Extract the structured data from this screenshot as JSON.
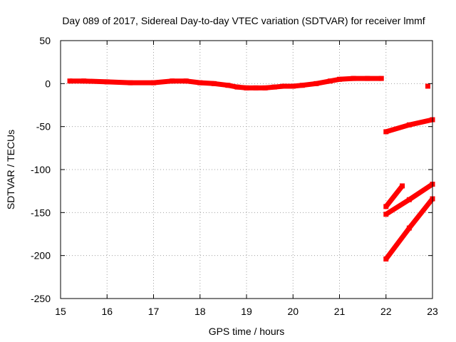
{
  "chart_data": {
    "type": "scatter",
    "title": "Day 089 of 2017, Sidereal Day-to-day VTEC variation (SDTVAR) for receiver lmmf",
    "xlabel": "GPS time / hours",
    "ylabel": "SDTVAR / TECUs",
    "xlim": [
      15,
      23
    ],
    "ylim": [
      -250,
      50
    ],
    "xticks": [
      15,
      16,
      17,
      18,
      19,
      20,
      21,
      22,
      23
    ],
    "yticks": [
      -250,
      -200,
      -150,
      -100,
      -50,
      0,
      50
    ],
    "grid": true,
    "legend": "none",
    "series_color": "#ff0000",
    "series": [
      {
        "name": "main-trace",
        "x": [
          15.2,
          15.5,
          16.0,
          16.5,
          17.0,
          17.4,
          17.7,
          18.0,
          18.3,
          18.6,
          18.8,
          19.0,
          19.2,
          19.4,
          19.6,
          19.8,
          20.0,
          20.2,
          20.5,
          20.8,
          21.0,
          21.3,
          21.6,
          21.9
        ],
        "y": [
          3,
          3,
          2,
          1,
          1,
          3,
          3,
          1,
          0,
          -2,
          -4,
          -5,
          -5,
          -5,
          -4,
          -3,
          -3,
          -2,
          0,
          3,
          5,
          6,
          6,
          6
        ]
      },
      {
        "name": "offset-point",
        "x": [
          22.9
        ],
        "y": [
          -3
        ]
      },
      {
        "name": "arc-1",
        "x": [
          22.0,
          22.5,
          23.0
        ],
        "y": [
          -56,
          -48,
          -42
        ]
      },
      {
        "name": "arc-2",
        "x": [
          22.0,
          22.35
        ],
        "y": [
          -143,
          -119
        ]
      },
      {
        "name": "arc-3",
        "x": [
          22.0,
          22.5,
          23.0
        ],
        "y": [
          -152,
          -135,
          -117
        ]
      },
      {
        "name": "arc-4",
        "x": [
          22.0,
          22.5,
          23.0
        ],
        "y": [
          -204,
          -168,
          -134
        ]
      }
    ]
  }
}
